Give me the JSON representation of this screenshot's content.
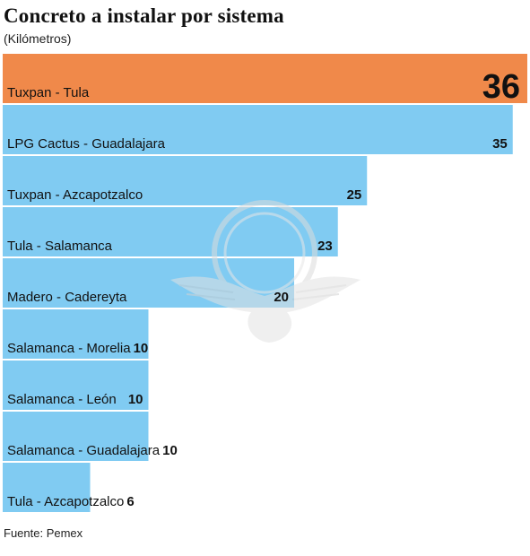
{
  "title": "Concreto a instalar por sistema",
  "subtitle": "(Kilómetros)",
  "source": "Fuente: Pemex",
  "colors": {
    "highlight": "#F0894A",
    "bar": "#80CBF2",
    "watermark": "#e4e4e4"
  },
  "watermark_icon": "eagle-seal-icon",
  "chart_data": {
    "type": "bar",
    "orientation": "horizontal",
    "categories": [
      "Tuxpan - Tula",
      "LPG Cactus - Guadalajara",
      "Tuxpan - Azcapotzalco",
      "Tula - Salamanca",
      "Madero - Cadereyta",
      "Salamanca - Morelia",
      "Salamanca - León",
      "Salamanca - Guadalajara",
      "Tula - Azcapotzalco"
    ],
    "values": [
      36,
      35,
      25,
      23,
      20,
      10,
      10,
      10,
      6
    ],
    "value_labels": [
      "36",
      "35",
      "25",
      "23",
      "20",
      "10",
      "10",
      "10",
      "6"
    ],
    "highlight_index": 0,
    "xlim": [
      0,
      36
    ],
    "grid": false,
    "legend": "none"
  }
}
